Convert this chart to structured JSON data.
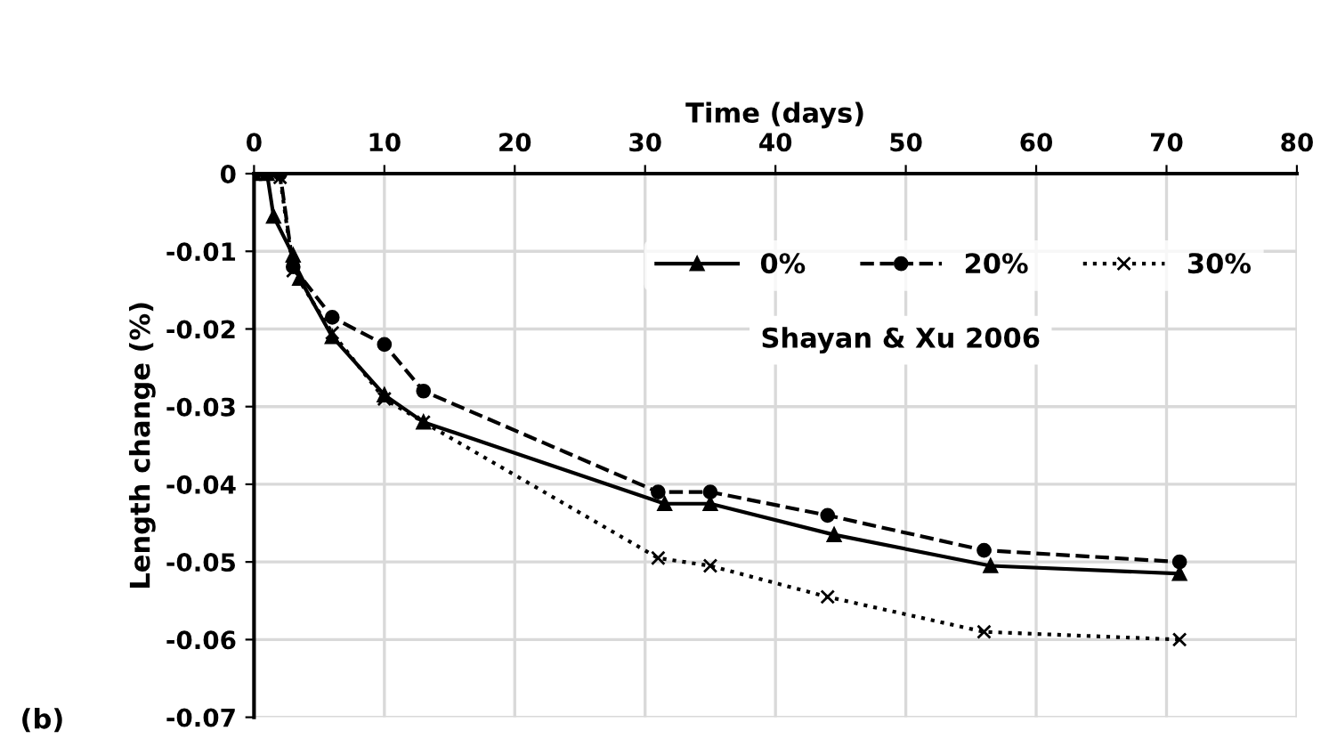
{
  "chart_data": {
    "type": "line",
    "xlabel": "Time (days)",
    "ylabel": "Length change (%)",
    "xlim": [
      0,
      80
    ],
    "xticks": [
      0,
      10,
      20,
      30,
      40,
      50,
      60,
      70,
      80
    ],
    "ylim": [
      -0.07,
      0
    ],
    "yticks": [
      0,
      -0.01,
      -0.02,
      -0.03,
      -0.04,
      -0.05,
      -0.06,
      -0.07
    ],
    "grid": true,
    "legend": "top right",
    "annotations": [
      "Shayan & Xu 2006",
      "(b)"
    ],
    "series": [
      {
        "name": "0%",
        "color": "#000000",
        "marker": "triangle",
        "line_style": "solid",
        "x": [
          0,
          1,
          1.5,
          3,
          3.5,
          6,
          10,
          13,
          31.5,
          35,
          44.5,
          56.5,
          71
        ],
        "values": [
          0,
          0,
          -0.0055,
          -0.0105,
          -0.0135,
          -0.021,
          -0.0285,
          -0.032,
          -0.0425,
          -0.0425,
          -0.0465,
          -0.0505,
          -0.0515
        ]
      },
      {
        "name": "20%",
        "color": "#000000",
        "marker": "circle",
        "line_style": "dashed",
        "x": [
          0,
          1,
          2,
          3,
          6,
          10,
          13,
          31,
          35,
          44,
          56,
          71
        ],
        "values": [
          0,
          0,
          0,
          -0.012,
          -0.0185,
          -0.022,
          -0.028,
          -0.041,
          -0.041,
          -0.044,
          -0.0485,
          -0.05
        ]
      },
      {
        "name": "30%",
        "color": "#000000",
        "marker": "cross",
        "line_style": "dotted",
        "x": [
          0,
          1,
          2,
          3,
          6,
          10,
          13,
          31,
          35,
          44,
          56,
          71
        ],
        "values": [
          0,
          0,
          -0.0005,
          -0.0125,
          -0.0205,
          -0.029,
          -0.032,
          -0.0495,
          -0.0505,
          -0.0545,
          -0.059,
          -0.06
        ]
      }
    ]
  }
}
